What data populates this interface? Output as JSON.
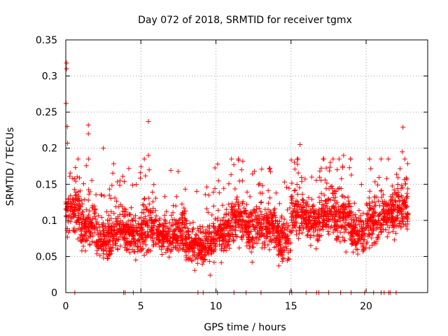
{
  "chart_data": {
    "type": "scatter",
    "title": "Day 072 of 2018, SRMTID for receiver tgmx",
    "xlabel": "GPS time / hours",
    "ylabel": "SRMTID / TECUs",
    "xlim": [
      0,
      24.1
    ],
    "ylim": [
      0,
      0.35
    ],
    "x_ticks": [
      0,
      5,
      10,
      15,
      20
    ],
    "x_tick_labels": [
      "0",
      "5",
      "10",
      "15",
      "20"
    ],
    "y_ticks": [
      0,
      0.05,
      0.1,
      0.15,
      0.2,
      0.25,
      0.3,
      0.35
    ],
    "y_tick_labels": [
      "0",
      "0.05",
      "0.1",
      "0.15",
      "0.2",
      "0.25",
      "0.3",
      "0.35"
    ],
    "grid": true,
    "marker": "plus",
    "color": "#ff0000",
    "notable_points": [
      {
        "x": 0.05,
        "y": 0.318
      },
      {
        "x": 0.05,
        "y": 0.31
      },
      {
        "x": 0.02,
        "y": 0.262
      },
      {
        "x": 0.1,
        "y": 0.23
      },
      {
        "x": 0.12,
        "y": 0.207
      },
      {
        "x": 1.5,
        "y": 0.232
      },
      {
        "x": 1.5,
        "y": 0.22
      },
      {
        "x": 2.5,
        "y": 0.2
      },
      {
        "x": 5.5,
        "y": 0.237
      },
      {
        "x": 5.5,
        "y": 0.19
      },
      {
        "x": 5.55,
        "y": 0.17
      },
      {
        "x": 15.6,
        "y": 0.205
      },
      {
        "x": 18.5,
        "y": 0.19
      },
      {
        "x": 22.45,
        "y": 0.229
      },
      {
        "x": 22.4,
        "y": 0.195
      }
    ],
    "clusters": [
      {
        "x_start": 0.0,
        "x_end": 1.0,
        "y_mean": 0.115,
        "y_spread": 0.035
      },
      {
        "x_start": 1.0,
        "x_end": 2.0,
        "y_mean": 0.095,
        "y_spread": 0.03
      },
      {
        "x_start": 2.0,
        "x_end": 3.0,
        "y_mean": 0.075,
        "y_spread": 0.028
      },
      {
        "x_start": 3.0,
        "x_end": 4.0,
        "y_mean": 0.085,
        "y_spread": 0.03
      },
      {
        "x_start": 4.0,
        "x_end": 5.0,
        "y_mean": 0.08,
        "y_spread": 0.025
      },
      {
        "x_start": 5.0,
        "x_end": 6.0,
        "y_mean": 0.09,
        "y_spread": 0.03
      },
      {
        "x_start": 6.0,
        "x_end": 7.0,
        "y_mean": 0.08,
        "y_spread": 0.025
      },
      {
        "x_start": 7.0,
        "x_end": 8.0,
        "y_mean": 0.085,
        "y_spread": 0.03
      },
      {
        "x_start": 8.0,
        "x_end": 9.0,
        "y_mean": 0.07,
        "y_spread": 0.03
      },
      {
        "x_start": 9.0,
        "x_end": 10.0,
        "y_mean": 0.07,
        "y_spread": 0.03
      },
      {
        "x_start": 10.0,
        "x_end": 11.0,
        "y_mean": 0.085,
        "y_spread": 0.03
      },
      {
        "x_start": 11.0,
        "x_end": 12.0,
        "y_mean": 0.1,
        "y_spread": 0.03
      },
      {
        "x_start": 12.0,
        "x_end": 13.0,
        "y_mean": 0.09,
        "y_spread": 0.03
      },
      {
        "x_start": 13.0,
        "x_end": 14.0,
        "y_mean": 0.09,
        "y_spread": 0.03
      },
      {
        "x_start": 14.0,
        "x_end": 15.0,
        "y_mean": 0.075,
        "y_spread": 0.028
      },
      {
        "x_start": 15.0,
        "x_end": 16.0,
        "y_mean": 0.11,
        "y_spread": 0.03
      },
      {
        "x_start": 16.0,
        "x_end": 17.0,
        "y_mean": 0.1,
        "y_spread": 0.028
      },
      {
        "x_start": 17.0,
        "x_end": 18.0,
        "y_mean": 0.11,
        "y_spread": 0.03
      },
      {
        "x_start": 18.0,
        "x_end": 19.0,
        "y_mean": 0.105,
        "y_spread": 0.035
      },
      {
        "x_start": 19.0,
        "x_end": 20.0,
        "y_mean": 0.08,
        "y_spread": 0.025
      },
      {
        "x_start": 20.0,
        "x_end": 21.0,
        "y_mean": 0.1,
        "y_spread": 0.03
      },
      {
        "x_start": 21.0,
        "x_end": 22.0,
        "y_mean": 0.11,
        "y_spread": 0.03
      },
      {
        "x_start": 22.0,
        "x_end": 22.8,
        "y_mean": 0.125,
        "y_spread": 0.04
      }
    ],
    "zero_value_x": [
      0.6,
      3.85,
      3.95,
      4.5,
      8.8,
      9.15,
      10.1,
      11.2,
      12.0,
      13.0,
      14.9,
      15.05,
      16.0,
      16.7,
      16.85,
      17.5,
      18.3,
      19.0,
      19.9,
      20.5,
      21.0,
      21.2,
      21.5,
      21.6,
      22.0
    ]
  }
}
